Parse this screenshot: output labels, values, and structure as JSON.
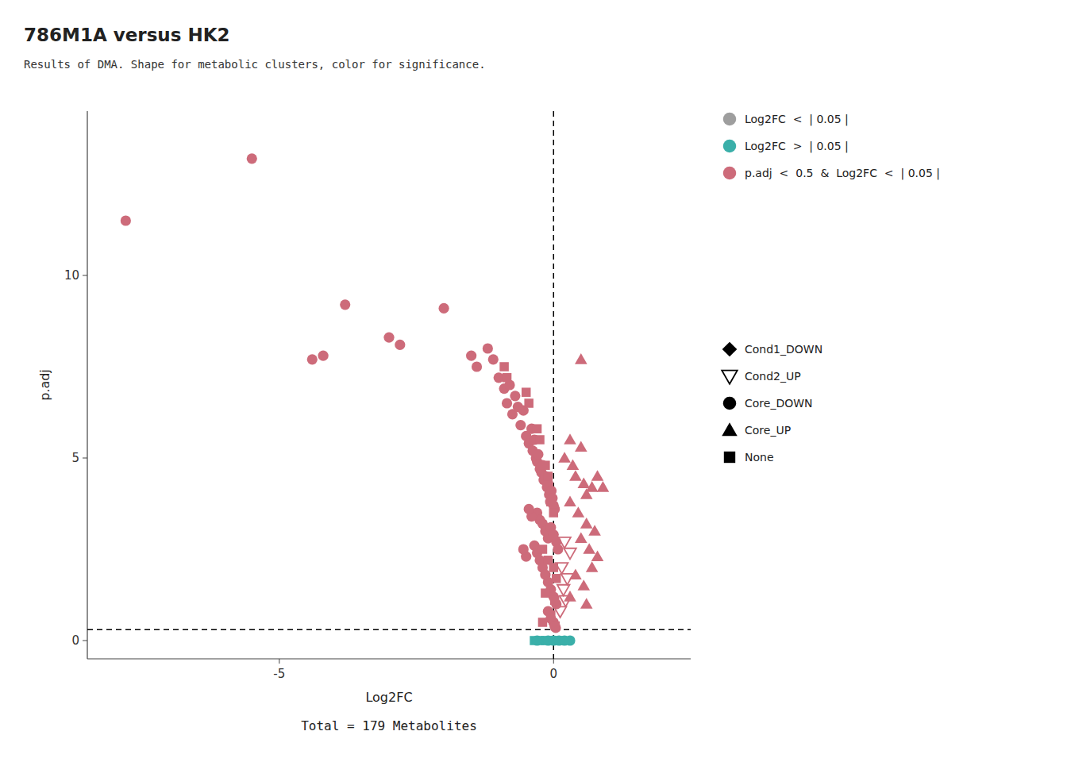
{
  "chart_data": {
    "type": "scatter",
    "title": "786M1A versus HK2",
    "subtitle": "Results of DMA. Shape for metabolic clusters, color for significance.",
    "x_label": "Log2FC",
    "y_label": "p.adj",
    "annotation": "Total = 179 Metabolites",
    "xlim": [
      -8.5,
      2.5
    ],
    "ylim": [
      -0.5,
      14.5
    ],
    "xticks": [
      -5,
      0
    ],
    "yticks": [
      0,
      5,
      10
    ],
    "grid": false,
    "reference_lines": [
      {
        "axis": "y",
        "value": 0.3
      },
      {
        "axis": "x",
        "value": 0
      }
    ],
    "series": [
      {
        "color": "#cd6b7a",
        "marker": "circle",
        "x": [
          -7.8,
          -5.5,
          -3.8,
          -4.2,
          -4.4,
          -2.8,
          -3.0,
          -2.0,
          -1.5,
          -1.4,
          -1.2,
          -1.1,
          -1.0,
          -0.9,
          -0.85,
          -0.8,
          -0.75,
          -0.7,
          -0.65,
          -0.6,
          -0.55,
          -0.5,
          -0.45,
          -0.4,
          -0.38,
          -0.35,
          -0.32,
          -0.3,
          -0.28,
          -0.25,
          -0.22,
          -0.2,
          -0.18,
          -0.15,
          -0.12,
          -0.1,
          -0.08,
          -0.06,
          -0.04,
          -0.02,
          0.0,
          0.02,
          -0.3,
          -0.25,
          -0.2,
          -0.15,
          -0.1,
          -0.05,
          0.0,
          0.05,
          0.08,
          -0.4,
          -0.45,
          -0.35,
          -0.3,
          -0.25,
          -0.2,
          -0.15,
          -0.1,
          -0.05,
          0.0,
          0.05,
          -0.5,
          -0.55,
          -0.1,
          -0.05,
          0.0,
          0.02,
          0.04
        ],
        "values": [
          11.5,
          13.2,
          9.2,
          7.8,
          7.7,
          8.1,
          8.3,
          9.1,
          7.8,
          7.5,
          8.0,
          7.7,
          7.2,
          6.9,
          6.5,
          7.0,
          6.2,
          6.7,
          6.4,
          5.9,
          6.3,
          5.6,
          5.4,
          5.8,
          5.2,
          5.5,
          5.0,
          4.9,
          5.1,
          4.7,
          4.6,
          4.8,
          4.4,
          4.5,
          4.2,
          4.3,
          4.0,
          3.8,
          4.1,
          3.9,
          3.7,
          3.6,
          3.5,
          3.3,
          3.2,
          3.0,
          2.8,
          3.1,
          2.9,
          2.7,
          2.5,
          3.4,
          3.6,
          2.6,
          2.4,
          2.2,
          2.0,
          1.8,
          1.6,
          1.4,
          1.2,
          1.0,
          2.3,
          2.5,
          0.8,
          0.6,
          0.5,
          0.4,
          0.35
        ]
      },
      {
        "color": "#cd6b7a",
        "marker": "square",
        "x": [
          -0.9,
          -0.85,
          -0.5,
          -0.45,
          -0.3,
          -0.25,
          -0.15,
          -0.1,
          -0.05,
          0.0,
          -0.2,
          -0.1,
          0.0,
          0.05,
          -0.15,
          0.02,
          -0.05,
          0.03,
          -0.2
        ],
        "values": [
          7.5,
          7.2,
          6.8,
          6.5,
          5.8,
          5.5,
          4.8,
          4.5,
          3.8,
          3.5,
          2.5,
          2.2,
          2.0,
          1.7,
          1.3,
          1.1,
          0.7,
          0.4,
          0.5
        ]
      },
      {
        "color": "#cd6b7a",
        "marker": "triangle_up",
        "x": [
          0.5,
          0.3,
          0.5,
          0.2,
          0.35,
          0.4,
          0.55,
          0.6,
          0.7,
          0.8,
          0.9,
          0.3,
          0.45,
          0.6,
          0.75,
          0.5,
          0.65,
          0.8,
          0.7,
          0.4,
          0.55,
          0.3,
          0.6
        ],
        "values": [
          7.7,
          5.5,
          5.3,
          5.0,
          4.8,
          4.5,
          4.3,
          4.0,
          4.2,
          4.5,
          4.2,
          3.8,
          3.5,
          3.2,
          3.0,
          2.8,
          2.5,
          2.3,
          2.0,
          1.8,
          1.5,
          1.2,
          1.0
        ]
      },
      {
        "color": "#cd6b7a",
        "marker": "open_triangle_down",
        "x": [
          0.2,
          0.3,
          0.15,
          0.25,
          0.18,
          0.22,
          0.12
        ],
        "values": [
          2.7,
          2.4,
          2.0,
          1.7,
          1.4,
          1.1,
          0.8
        ]
      },
      {
        "color": "#3aafa9",
        "marker": "square",
        "x": [
          -0.35,
          -0.25,
          -0.15,
          -0.05,
          0.05,
          0.15
        ],
        "values": [
          0.0,
          0.0,
          0.0,
          0.0,
          0.0,
          0.0
        ]
      },
      {
        "color": "#3aafa9",
        "marker": "circle",
        "x": [
          -0.3,
          -0.1,
          0.0,
          0.1,
          0.2,
          0.3
        ],
        "values": [
          0.0,
          0.0,
          0.0,
          0.0,
          0.0,
          0.0
        ]
      }
    ],
    "legends": [
      {
        "entries": [
          {
            "label": "Log2FC  <  | 0.05 |",
            "color": "#9e9e9e",
            "marker": "circle"
          },
          {
            "label": "Log2FC  >  | 0.05 |",
            "color": "#3aafa9",
            "marker": "circle"
          },
          {
            "label": "p.adj  <  0.5  &  Log2FC  <  | 0.05 |",
            "color": "#cd6b7a",
            "marker": "circle"
          }
        ]
      },
      {
        "entries": [
          {
            "label": "Cond1_DOWN",
            "color": "#000000",
            "marker": "diamond"
          },
          {
            "label": "Cond2_UP",
            "color": "#000000",
            "marker": "open_triangle_down"
          },
          {
            "label": "Core_DOWN",
            "color": "#000000",
            "marker": "circle"
          },
          {
            "label": "Core_UP",
            "color": "#000000",
            "marker": "triangle_up"
          },
          {
            "label": "None",
            "color": "#000000",
            "marker": "square"
          }
        ]
      }
    ]
  }
}
